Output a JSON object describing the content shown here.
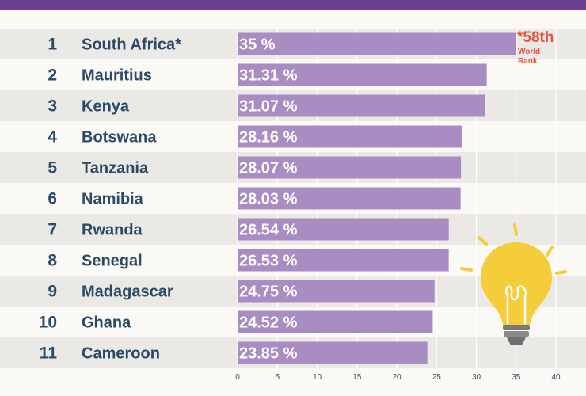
{
  "colors": {
    "header": "#6a3f94",
    "bar": "#a98dc2",
    "stripe": "#ebe9e6",
    "text": "#2a4a66",
    "accent": "#e8533a",
    "bulb": "#f5cc3a"
  },
  "annotation": {
    "headline": "*58th",
    "line1": "World",
    "line2": "Rank"
  },
  "chart_data": {
    "type": "bar",
    "orientation": "horizontal",
    "ranks": [
      "1",
      "2",
      "3",
      "4",
      "5",
      "6",
      "7",
      "8",
      "9",
      "10",
      "11"
    ],
    "categories": [
      "South Africa*",
      "Mauritius",
      "Kenya",
      "Botswana",
      "Tanzania",
      "Namibia",
      "Rwanda",
      "Senegal",
      "Madagascar",
      "Ghana",
      "Cameroon"
    ],
    "values": [
      35,
      31.31,
      31.07,
      28.16,
      28.07,
      28.03,
      26.54,
      26.53,
      24.75,
      24.52,
      23.85
    ],
    "value_labels": [
      "35 %",
      "31.31 %",
      "31.07 %",
      "28.16 %",
      "28.07 %",
      "28.03 %",
      "26.54 %",
      "26.53 %",
      "24.75 %",
      "24.52 %",
      "23.85 %"
    ],
    "xlim": [
      0,
      40
    ],
    "xticks": [
      "0",
      "5",
      "10",
      "15",
      "20",
      "25",
      "30",
      "35",
      "40"
    ],
    "grid": true
  }
}
